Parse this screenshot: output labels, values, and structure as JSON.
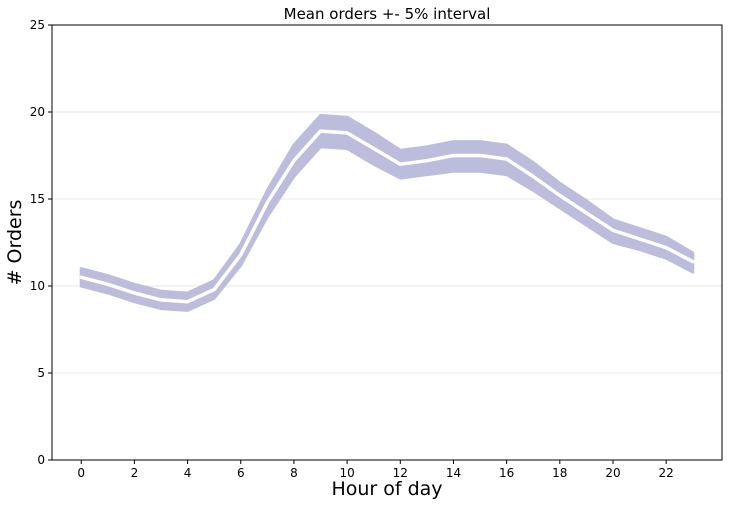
{
  "chart_data": {
    "type": "area",
    "title": "Mean orders +- 5% interval",
    "xlabel": "Hour of day",
    "ylabel": "# Orders",
    "xlim": [
      -1.1,
      24.1
    ],
    "ylim": [
      0,
      25
    ],
    "xticks": [
      0,
      2,
      4,
      6,
      8,
      10,
      12,
      14,
      16,
      18,
      20,
      22
    ],
    "yticks": [
      0,
      5,
      10,
      15,
      20,
      25
    ],
    "grid": "y",
    "x": [
      0,
      1,
      2,
      3,
      4,
      5,
      6,
      7,
      8,
      9,
      10,
      11,
      12,
      13,
      14,
      15,
      16,
      17,
      18,
      19,
      20,
      21,
      22,
      23
    ],
    "series": [
      {
        "values": [
          10.5,
          10.1,
          9.6,
          9.2,
          9.1,
          9.8,
          11.8,
          14.8,
          17.2,
          18.9,
          18.8,
          17.9,
          17.0,
          17.2,
          17.5,
          17.5,
          17.3,
          16.3,
          15.2,
          14.2,
          13.2,
          12.7,
          12.2,
          11.4
        ],
        "lower": [
          10.0,
          9.6,
          9.1,
          8.7,
          8.6,
          9.3,
          11.2,
          14.0,
          16.3,
          18.0,
          17.9,
          17.0,
          16.2,
          16.4,
          16.6,
          16.6,
          16.4,
          15.5,
          14.5,
          13.5,
          12.5,
          12.1,
          11.6,
          10.8
        ],
        "upper": [
          11.0,
          10.6,
          10.1,
          9.7,
          9.6,
          10.3,
          12.4,
          15.5,
          18.1,
          19.8,
          19.7,
          18.8,
          17.8,
          18.0,
          18.3,
          18.3,
          18.1,
          17.1,
          15.9,
          14.9,
          13.8,
          13.3,
          12.8,
          11.9
        ]
      }
    ],
    "colors": {
      "band": "#bcbcdc",
      "line": "#ffffff",
      "grid": "#e8e8e8",
      "axis": "#000000"
    }
  }
}
